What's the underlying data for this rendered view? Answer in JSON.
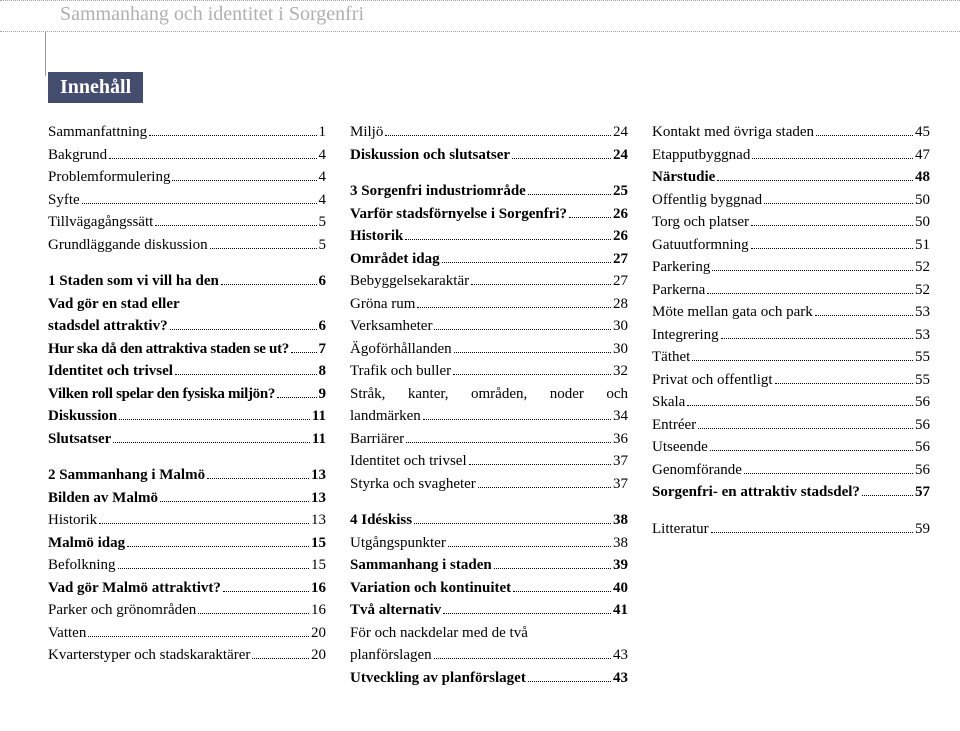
{
  "header": {
    "title": "Sammanhang och identitet i Sorgenfri"
  },
  "section_label": "Innehåll",
  "columns": [
    [
      {
        "label": "Sammanfattning",
        "page": "1"
      },
      {
        "label": "Bakgrund",
        "page": "4"
      },
      {
        "label": "Problemformulering",
        "page": "4"
      },
      {
        "label": "Syfte",
        "page": "4"
      },
      {
        "label": "Tillvägagångssätt",
        "page": "5"
      },
      {
        "label": "Grundläggande diskussion",
        "page": "5"
      },
      {
        "gap": true
      },
      {
        "label": "1 Staden som vi vill ha den",
        "page": "6",
        "bold": true
      },
      {
        "ml_lead": "Vad gör en stad eller",
        "ml_label": "stadsdel attraktiv?",
        "ml_page": "6",
        "bold": true
      },
      {
        "label": "Hur ska då den attraktiva staden se ut?",
        "page": "7",
        "bold": true,
        "tight": true
      },
      {
        "label": "Identitet och trivsel",
        "page": "8",
        "bold": true
      },
      {
        "label": "Vilken roll spelar den fysiska miljön?",
        "page": "9",
        "bold": true,
        "tight": true
      },
      {
        "label": "Diskussion",
        "page": "11",
        "bold": true
      },
      {
        "label": "Slutsatser",
        "page": "11",
        "bold": true
      },
      {
        "gap": true
      },
      {
        "label": "2 Sammanhang i Malmö",
        "page": "13",
        "bold": true
      },
      {
        "label": "Bilden av Malmö",
        "page": "13",
        "bold": true
      },
      {
        "label": "Historik",
        "page": "13"
      },
      {
        "label": "Malmö idag",
        "page": "15",
        "bold": true
      },
      {
        "label": "Befolkning",
        "page": "15"
      },
      {
        "label": "Vad gör Malmö attraktivt?",
        "page": "16",
        "bold": true
      },
      {
        "label": "Parker och grönområden",
        "page": "16"
      },
      {
        "label": "Vatten",
        "page": "20"
      },
      {
        "label": "Kvarterstyper och stadskaraktärer",
        "page": "20"
      }
    ],
    [
      {
        "label": "Miljö",
        "page": "24"
      },
      {
        "label": "Diskussion och slutsatser",
        "page": "24",
        "bold": true
      },
      {
        "gap": true
      },
      {
        "label": "3 Sorgenfri industriområde",
        "page": "25",
        "bold": true
      },
      {
        "label": "Varför stadsförnyelse i Sorgenfri?",
        "page": "26",
        "bold": true
      },
      {
        "label": "Historik",
        "page": "26",
        "bold": true
      },
      {
        "label": "Området idag",
        "page": "27",
        "bold": true
      },
      {
        "label": "Bebyggelsekaraktär",
        "page": "27"
      },
      {
        "label": "Gröna rum",
        "page": "28"
      },
      {
        "label": "Verksamheter",
        "page": "30"
      },
      {
        "label": "Ägoförhållanden",
        "page": "30"
      },
      {
        "label": "Trafik och buller",
        "page": "32"
      },
      {
        "ml_lead": "Stråk, kanter, områden, noder och",
        "ml_label": "landmärken",
        "ml_page": "34",
        "ml_justify": true
      },
      {
        "label": "Barriärer",
        "page": "36"
      },
      {
        "label": "Identitet och trivsel",
        "page": "37"
      },
      {
        "label": "Styrka och svagheter",
        "page": "37"
      },
      {
        "gap": true
      },
      {
        "label": "4 Idéskiss",
        "page": "38",
        "bold": true
      },
      {
        "label": "Utgångspunkter",
        "page": "38"
      },
      {
        "label": "Sammanhang i staden",
        "page": "39",
        "bold": true
      },
      {
        "label": "Variation och kontinuitet",
        "page": "40",
        "bold": true
      },
      {
        "label": "Två alternativ",
        "page": "41",
        "bold": true
      },
      {
        "ml_lead": "För och nackdelar med de två",
        "ml_label": "planförslagen",
        "ml_page": "43"
      },
      {
        "label": "Utveckling av planförslaget",
        "page": "43",
        "bold": true
      }
    ],
    [
      {
        "label": "Kontakt med övriga staden",
        "page": "45"
      },
      {
        "label": "Etapputbyggnad",
        "page": "47"
      },
      {
        "label": "Närstudie",
        "page": "48",
        "bold": true
      },
      {
        "label": "Offentlig byggnad",
        "page": "50"
      },
      {
        "label": "Torg och platser",
        "page": "50"
      },
      {
        "label": "Gatuutformning",
        "page": "51"
      },
      {
        "label": "Parkering",
        "page": "52"
      },
      {
        "label": "Parkerna",
        "page": "52"
      },
      {
        "label": "Möte mellan gata och park",
        "page": "53"
      },
      {
        "label": "Integrering",
        "page": "53"
      },
      {
        "label": "Täthet",
        "page": "55"
      },
      {
        "label": "Privat och offentligt",
        "page": "55"
      },
      {
        "label": "Skala",
        "page": "56"
      },
      {
        "label": "Entréer",
        "page": "56"
      },
      {
        "label": "Utseende",
        "page": "56"
      },
      {
        "label": "Genomförande",
        "page": "56"
      },
      {
        "label": "Sorgenfri- en attraktiv stadsdel?",
        "page": "57",
        "bold": true
      },
      {
        "gap": true
      },
      {
        "label": "Litteratur",
        "page": "59"
      }
    ]
  ]
}
